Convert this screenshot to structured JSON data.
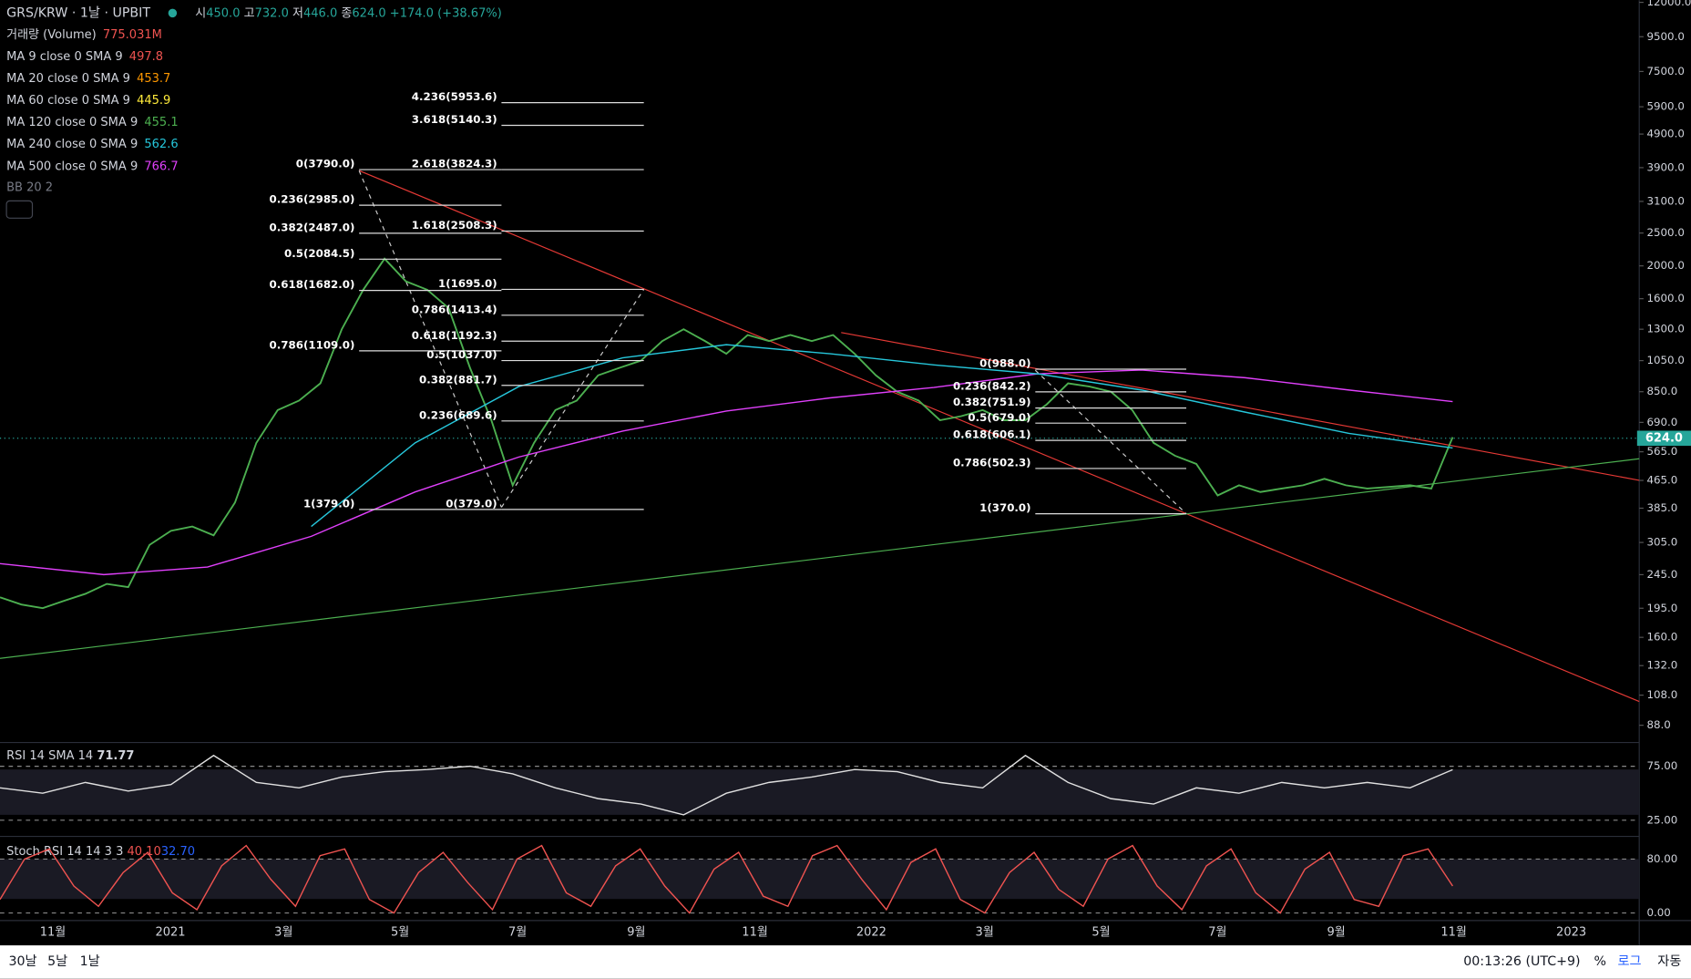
{
  "header": {
    "symbol": "GRS/KRW · 1날 · UPBIT",
    "ohlc": [
      {
        "label": "시",
        "value": "450.0"
      },
      {
        "label": "고",
        "value": "732.0"
      },
      {
        "label": "저",
        "value": "446.0"
      },
      {
        "label": "종",
        "value": "624.0"
      }
    ],
    "change": "+174.0 (+38.67%)",
    "last_price": "624.0"
  },
  "indicators": [
    {
      "name": "거래량 (Volume)",
      "value": "775.031M",
      "color": "#ef5350"
    },
    {
      "name": "MA 9 close 0 SMA 9",
      "value": "497.8",
      "color": "#ef5350"
    },
    {
      "name": "MA 20 close 0 SMA 9",
      "value": "453.7",
      "color": "#ff9800"
    },
    {
      "name": "MA 60 close 0 SMA 9",
      "value": "445.9",
      "color": "#ffeb3b"
    },
    {
      "name": "MA 120 close 0 SMA 9",
      "value": "455.1",
      "color": "#4caf50"
    },
    {
      "name": "MA 240 close 0 SMA 9",
      "value": "562.6",
      "color": "#26c6da"
    },
    {
      "name": "MA 500 close 0 SMA 9",
      "value": "766.7",
      "color": "#e040fb"
    }
  ],
  "bb": "BB 20 2",
  "fib_levels": {
    "left": [
      "0(3790.0)",
      "0.236(2985.0)",
      "0.382(2487.0)",
      "0.5(2084.5)",
      "0.618(1682.0)",
      "0.786(1109.0)",
      "1(379.0)"
    ],
    "middle": [
      "4.236(5953.6)",
      "3.618(5140.3)",
      "2.618(3824.3)",
      "1.618(2508.3)",
      "1(1695.0)",
      "0.786(1413.4)",
      "0.618(1192.3)",
      "0.5(1037.0)",
      "0.382(881.7)",
      "0.236(689.6)",
      "0(379.0)"
    ],
    "right": [
      "0(988.0)",
      "0.236(842.2)",
      "0.382(751.9)",
      "0.5(679.0)",
      "0.618(606.1)",
      "0.786(502.3)",
      "1(370.0)"
    ]
  },
  "time_axis": [
    "11월",
    "2021",
    "3월",
    "5월",
    "7월",
    "9월",
    "11월",
    "2022",
    "3월",
    "5월",
    "7월",
    "9월",
    "11월",
    "2023"
  ],
  "chart_data": {
    "type": "line",
    "log_scale": true,
    "ylim": [
      88,
      12000
    ],
    "yticks": [
      {
        "value": 12000,
        "label": "12000.0"
      },
      {
        "value": 9500,
        "label": "9500.0"
      },
      {
        "value": 7500,
        "label": "7500.0"
      },
      {
        "value": 5900,
        "label": "5900.0"
      },
      {
        "value": 4900,
        "label": "4900.0"
      },
      {
        "value": 3900,
        "label": "3900.0"
      },
      {
        "value": 3100,
        "label": "3100.0"
      },
      {
        "value": 2500,
        "label": "2500.0"
      },
      {
        "value": 2000,
        "label": "2000.0"
      },
      {
        "value": 1600,
        "label": "1600.0"
      },
      {
        "value": 1300,
        "label": "1300.0"
      },
      {
        "value": 1050,
        "label": "1050.0"
      },
      {
        "value": 850,
        "label": "850.0"
      },
      {
        "value": 690,
        "label": "690.0"
      },
      {
        "value": 565,
        "label": "565.0"
      },
      {
        "value": 465,
        "label": "465.0"
      },
      {
        "value": 385,
        "label": "385.0"
      },
      {
        "value": 305,
        "label": "305.0"
      },
      {
        "value": 245,
        "label": "245.0"
      },
      {
        "value": 195,
        "label": "195.0"
      },
      {
        "value": 160,
        "label": "160.0"
      },
      {
        "value": 132,
        "label": "132.0"
      },
      {
        "value": 108,
        "label": "108.0"
      },
      {
        "value": 88,
        "label": "88.0"
      }
    ],
    "series": [
      {
        "color": "#4caf50",
        "values": [
          210,
          200,
          195,
          205,
          215,
          230,
          225,
          300,
          330,
          340,
          320,
          400,
          600,
          750,
          800,
          900,
          1300,
          1700,
          2100,
          1800,
          1700,
          1500,
          1000,
          700,
          450,
          600,
          750,
          800,
          950,
          1000,
          1050,
          1200,
          1300,
          1200,
          1100,
          1250,
          1200,
          1250,
          1200,
          1250,
          1100,
          950,
          850,
          800,
          700,
          720,
          750,
          700,
          700,
          780,
          900,
          880,
          850,
          750,
          600,
          550,
          520,
          420,
          450,
          430,
          440,
          450,
          470,
          450,
          440,
          445,
          450,
          440,
          624
        ]
      },
      {
        "color": "#e040fb",
        "values": [
          264,
          245,
          258,
          318,
          430,
          545,
          650,
          745,
          815,
          875,
          960,
          985,
          935,
          860,
          795
        ]
      },
      {
        "color": "#26c6da",
        "values": [
          null,
          null,
          null,
          340,
          600,
          880,
          1070,
          1170,
          1100,
          1020,
          960,
          860,
          740,
          640,
          580
        ]
      }
    ]
  },
  "rsi": {
    "title": "RSI 14 SMA 14",
    "value": "71.77",
    "ticks": [
      {
        "value": 75,
        "label": "75.00"
      },
      {
        "value": 25,
        "label": "25.00"
      }
    ],
    "values": [
      55,
      50,
      60,
      52,
      58,
      85,
      60,
      55,
      65,
      70,
      72,
      75,
      68,
      55,
      45,
      40,
      30,
      50,
      60,
      65,
      72,
      70,
      60,
      55,
      85,
      60,
      45,
      40,
      55,
      50,
      60,
      55,
      60,
      55,
      71.77
    ]
  },
  "stoch": {
    "title": "Stoch RSI 14 14 3 3",
    "k": "40.10",
    "d": "32.70",
    "ticks": [
      {
        "value": 80,
        "label": "80.00"
      },
      {
        "value": 0,
        "label": "0.00"
      }
    ],
    "values": [
      20,
      80,
      95,
      40,
      10,
      60,
      90,
      30,
      5,
      70,
      100,
      50,
      10,
      85,
      95,
      20,
      0,
      60,
      90,
      45,
      5,
      80,
      100,
      30,
      10,
      70,
      95,
      40,
      0,
      65,
      90,
      25,
      10,
      85,
      100,
      50,
      5,
      75,
      95,
      20,
      0,
      60,
      90,
      35,
      10,
      80,
      100,
      40,
      5,
      70,
      95,
      30,
      0,
      65,
      90,
      20,
      10,
      85,
      95,
      40
    ]
  },
  "bottom_bar": {
    "ranges": [
      "30날",
      "5날",
      "1날"
    ],
    "clock": "00:13:26 (UTC+9)",
    "options": [
      "%",
      "로그",
      "자동"
    ]
  }
}
